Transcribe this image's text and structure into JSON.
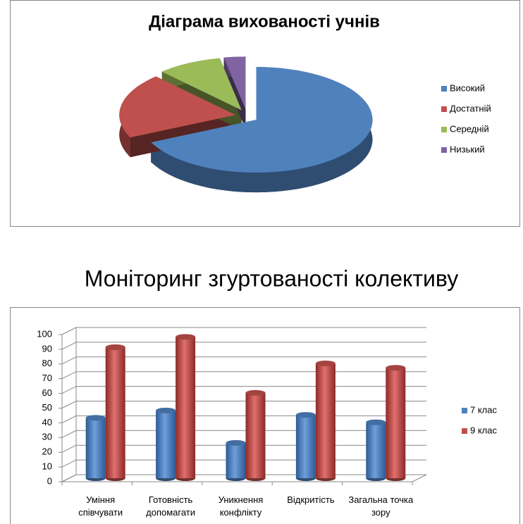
{
  "chart_data": [
    {
      "type": "pie3d",
      "title": "Діаграма вихованості учнів",
      "categories": [
        "Високий",
        "Достатній",
        "Середній",
        "Низький"
      ],
      "values": [
        68,
        20,
        9,
        3
      ],
      "colors": [
        "#4f81bd",
        "#c0504d",
        "#9bbb59",
        "#8064a2"
      ],
      "legend": "right"
    },
    {
      "type": "bar3d",
      "title": "Моніторинг згуртованості колективу",
      "categories": [
        "Уміння співчувати",
        "Готовність допомагати",
        "Уникнення конфлікту",
        "Відкритість",
        "Загальна точка зору"
      ],
      "series": [
        {
          "name": "7 клас",
          "color": "#4f81bd",
          "values": [
            41,
            46,
            24,
            43,
            38
          ]
        },
        {
          "name": "9 клас",
          "color": "#c0504d",
          "values": [
            89,
            96,
            58,
            78,
            75
          ]
        }
      ],
      "ylim": [
        0,
        100
      ],
      "yticks": [
        0,
        10,
        20,
        30,
        40,
        50,
        60,
        70,
        80,
        90,
        100
      ],
      "grid": true,
      "legend": "right"
    }
  ]
}
